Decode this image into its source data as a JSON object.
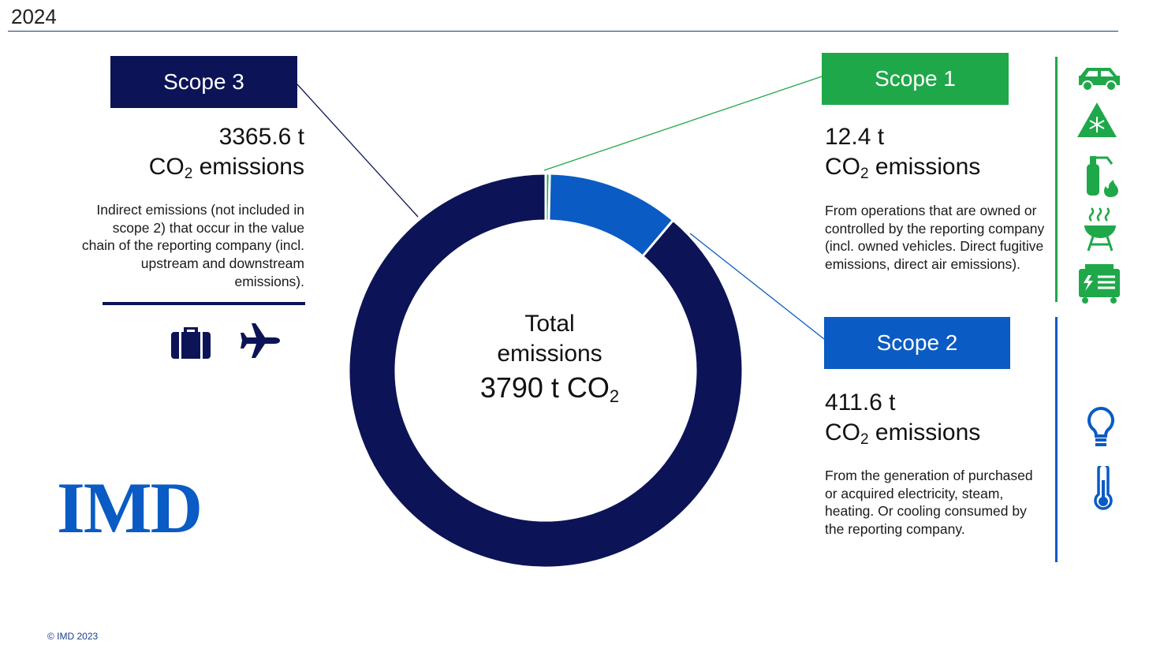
{
  "header": {
    "year": "2024"
  },
  "center": {
    "line1": "Total",
    "line2": "emissions",
    "total_value": "3790 t CO",
    "total_sub": "2"
  },
  "scopes": {
    "scope3": {
      "label": "Scope 3",
      "value": "3365.6 t",
      "unit_prefix": "CO",
      "unit_sub": "2",
      "unit_suffix": " emissions",
      "description": "Indirect emissions (not included in scope 2) that occur in the value chain of the reporting company (incl. upstream and downstream emissions).",
      "color": "#0c1457",
      "icons": [
        "briefcase-icon",
        "airplane-icon"
      ]
    },
    "scope1": {
      "label": "Scope 1",
      "value": "12.4 t",
      "unit_prefix": "CO",
      "unit_sub": "2",
      "unit_suffix": " emissions",
      "description": "From operations that are owned or controlled by the reporting company (incl. owned vehicles. Direct fugitive emissions, direct air emissions).",
      "color": "#1fa84a",
      "icons": [
        "car-icon",
        "refrigerant-warning-icon",
        "fire-extinguisher-icon",
        "grill-icon",
        "generator-icon"
      ]
    },
    "scope2": {
      "label": "Scope 2",
      "value": "411.6 t",
      "unit_prefix": "CO",
      "unit_sub": "2",
      "unit_suffix": " emissions",
      "description": "From the generation of purchased or acquired electricity, steam, heating. Or cooling consumed by the reporting company.",
      "color": "#0a5bc4",
      "icons": [
        "lightbulb-icon",
        "thermometer-icon"
      ]
    }
  },
  "chart_data": {
    "type": "pie",
    "donut": true,
    "unit": "t CO2",
    "total": 3790,
    "slices": [
      {
        "label": "Scope 1",
        "value": 12.4,
        "color": "#1fa84a"
      },
      {
        "label": "Scope 2",
        "value": 411.6,
        "color": "#0a5bc4"
      },
      {
        "label": "Scope 3",
        "value": 3365.6,
        "color": "#0c1457"
      }
    ]
  },
  "logo": {
    "text": "IMD"
  },
  "footer": {
    "copyright": "© IMD 2023"
  }
}
